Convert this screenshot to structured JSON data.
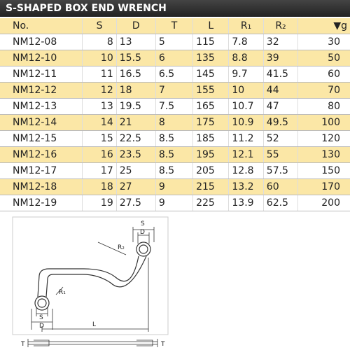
{
  "header": {
    "title": "S-SHAPED BOX END WRENCH"
  },
  "table": {
    "columns": [
      "No.",
      "S",
      "D",
      "T",
      "L",
      "R₁",
      "R₂",
      "▼g"
    ],
    "rows": [
      [
        "NM12-08",
        "8",
        "13",
        "5",
        "115",
        "7.8",
        "32",
        "30"
      ],
      [
        "NM12-10",
        "10",
        "15.5",
        "6",
        "135",
        "8.8",
        "39",
        "50"
      ],
      [
        "NM12-11",
        "11",
        "16.5",
        "6.5",
        "145",
        "9.7",
        "41.5",
        "60"
      ],
      [
        "NM12-12",
        "12",
        "18",
        "7",
        "155",
        "10",
        "44",
        "70"
      ],
      [
        "NM12-13",
        "13",
        "19.5",
        "7.5",
        "165",
        "10.7",
        "47",
        "80"
      ],
      [
        "NM12-14",
        "14",
        "21",
        "8",
        "175",
        "10.9",
        "49.5",
        "100"
      ],
      [
        "NM12-15",
        "15",
        "22.5",
        "8.5",
        "185",
        "11.2",
        "52",
        "120"
      ],
      [
        "NM12-16",
        "16",
        "23.5",
        "8.5",
        "195",
        "12.1",
        "55",
        "130"
      ],
      [
        "NM12-17",
        "17",
        "25",
        "8.5",
        "205",
        "12.8",
        "57.5",
        "150"
      ],
      [
        "NM12-18",
        "18",
        "27",
        "9",
        "215",
        "13.2",
        "60",
        "170"
      ],
      [
        "NM12-19",
        "19",
        "27.5",
        "9",
        "225",
        "13.9",
        "62.5",
        "200"
      ]
    ]
  },
  "diagram": {
    "labels": [
      "S",
      "D",
      "R₂",
      "R₁",
      "S",
      "D",
      "L",
      "T",
      "T"
    ]
  }
}
